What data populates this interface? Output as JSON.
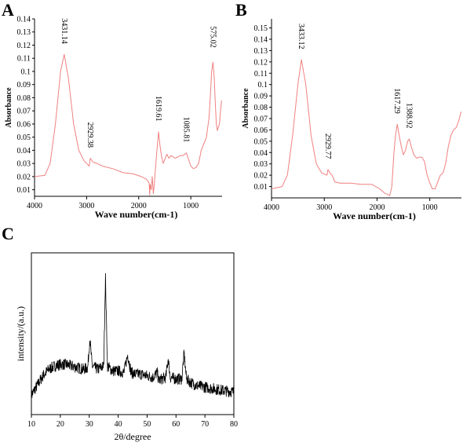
{
  "panels": {
    "a": {
      "letter": "A"
    },
    "b": {
      "letter": "B"
    },
    "c": {
      "letter": "C"
    }
  },
  "colors": {
    "ftir_line": "#f08080",
    "xrd_line": "#000000",
    "axis": "#000000"
  },
  "chart_data": [
    {
      "id": "A",
      "type": "line",
      "xlabel": "Wave number(cm-1)",
      "ylabel": "Absorbance",
      "xlim": [
        4000,
        400
      ],
      "ylim": [
        0.005,
        0.14
      ],
      "x_reversed": true,
      "x_ticks": [
        4000,
        3000,
        2000,
        1000
      ],
      "y_ticks": [
        0.01,
        0.02,
        0.03,
        0.04,
        0.05,
        0.06,
        0.07,
        0.08,
        0.09,
        0.1,
        0.11,
        0.12,
        0.13,
        0.14
      ],
      "x_tick_labels": [
        "4000",
        "3000",
        "2000",
        "1000"
      ],
      "y_tick_labels": [
        "0.01",
        "0.02",
        "0.03",
        "0.04",
        "0.05",
        "0.06",
        "0.07",
        "0.08",
        "0.09",
        "0.1",
        "0.11",
        "0.12",
        "0.13",
        "0.14"
      ],
      "series": [
        {
          "x": [
            4000,
            3800,
            3700,
            3600,
            3500,
            3431,
            3350,
            3250,
            3150,
            3050,
            2950,
            2929,
            2880,
            2800,
            2700,
            2500,
            2300,
            2100,
            1950,
            1850,
            1800,
            1790,
            1780,
            1760,
            1740,
            1720,
            1700,
            1680,
            1660,
            1640,
            1619,
            1590,
            1560,
            1530,
            1500,
            1460,
            1420,
            1380,
            1340,
            1300,
            1250,
            1200,
            1150,
            1085,
            1050,
            1000,
            950,
            900,
            850,
            800,
            750,
            700,
            650,
            620,
            600,
            575,
            550,
            530,
            510,
            490,
            470,
            450,
            430,
            410
          ],
          "y": [
            0.02,
            0.021,
            0.03,
            0.06,
            0.1,
            0.113,
            0.095,
            0.06,
            0.04,
            0.032,
            0.028,
            0.034,
            0.031,
            0.03,
            0.028,
            0.026,
            0.023,
            0.022,
            0.02,
            0.018,
            0.015,
            0.006,
            0.014,
            0.01,
            0.02,
            0.007,
            0.015,
            0.025,
            0.035,
            0.045,
            0.054,
            0.043,
            0.035,
            0.03,
            0.033,
            0.037,
            0.034,
            0.036,
            0.035,
            0.034,
            0.035,
            0.036,
            0.036,
            0.038,
            0.034,
            0.028,
            0.026,
            0.027,
            0.03,
            0.04,
            0.045,
            0.05,
            0.065,
            0.085,
            0.1,
            0.107,
            0.095,
            0.075,
            0.06,
            0.055,
            0.058,
            0.06,
            0.07,
            0.078
          ]
        }
      ],
      "annotations": [
        "3431.14",
        "2929.38",
        "1619.61",
        "1085.81",
        "575.02"
      ],
      "annotation_x": [
        3431,
        2929,
        1619,
        1085,
        575
      ],
      "annotation_y": [
        0.113,
        0.034,
        0.054,
        0.038,
        0.107
      ]
    },
    {
      "id": "B",
      "type": "line",
      "xlabel": "Wave number(cm-1)",
      "ylabel": "Absorbance",
      "xlim": [
        4000,
        400
      ],
      "ylim": [
        0.0,
        0.158
      ],
      "x_reversed": true,
      "x_ticks": [
        4000,
        3000,
        2000,
        1000
      ],
      "y_ticks": [
        0.01,
        0.02,
        0.03,
        0.04,
        0.05,
        0.06,
        0.07,
        0.08,
        0.09,
        0.1,
        0.11,
        0.12,
        0.13,
        0.14,
        0.15
      ],
      "x_tick_labels": [
        "4000",
        "3000",
        "2000",
        "1000"
      ],
      "y_tick_labels": [
        "0.01",
        "0.02",
        "0.03",
        "0.04",
        "0.05",
        "0.06",
        "0.07",
        "0.08",
        "0.09",
        "0.1",
        "0.11",
        "0.12",
        "0.13",
        "0.14",
        "0.15"
      ],
      "series": [
        {
          "x": [
            4000,
            3800,
            3700,
            3600,
            3500,
            3433,
            3350,
            3250,
            3150,
            3050,
            2950,
            2929,
            2880,
            2850,
            2800,
            2700,
            2500,
            2300,
            2100,
            1950,
            1850,
            1800,
            1760,
            1720,
            1680,
            1650,
            1617,
            1580,
            1540,
            1500,
            1460,
            1420,
            1389,
            1350,
            1300,
            1250,
            1200,
            1150,
            1100,
            1050,
            1000,
            950,
            900,
            850,
            800,
            750,
            700,
            650,
            600,
            550,
            500,
            450,
            420,
            400
          ],
          "y": [
            0.008,
            0.01,
            0.02,
            0.055,
            0.1,
            0.122,
            0.1,
            0.055,
            0.03,
            0.022,
            0.02,
            0.025,
            0.021,
            0.02,
            0.014,
            0.013,
            0.013,
            0.012,
            0.012,
            0.008,
            0.004,
            0.003,
            0.002,
            0.01,
            0.04,
            0.055,
            0.065,
            0.055,
            0.045,
            0.038,
            0.042,
            0.05,
            0.052,
            0.045,
            0.038,
            0.035,
            0.036,
            0.036,
            0.032,
            0.02,
            0.013,
            0.008,
            0.008,
            0.014,
            0.02,
            0.022,
            0.03,
            0.045,
            0.055,
            0.06,
            0.062,
            0.068,
            0.074,
            0.076
          ]
        }
      ],
      "annotations": [
        "3433.12",
        "2929.77",
        "1617.29",
        "1388.92"
      ],
      "annotation_x": [
        3433,
        2929,
        1617,
        1389
      ],
      "annotation_y": [
        0.122,
        0.025,
        0.065,
        0.052
      ]
    },
    {
      "id": "C",
      "type": "line",
      "xlabel": "2θ/degree",
      "ylabel": "intensity/(a.u.)",
      "xlim": [
        10,
        80
      ],
      "ylim": [
        0,
        100
      ],
      "x_ticks": [
        10,
        20,
        30,
        40,
        50,
        60,
        70,
        80
      ],
      "x_tick_labels": [
        "10",
        "20",
        "30",
        "40",
        "50",
        "60",
        "70",
        "80"
      ],
      "series": [
        {
          "x": [
            10,
            12,
            14,
            16,
            18,
            20,
            22,
            24,
            26,
            28,
            29.5,
            30.2,
            31,
            33,
            35,
            35.6,
            36.3,
            38,
            40,
            42,
            43.3,
            44.5,
            46,
            48,
            50,
            52,
            53.5,
            54,
            55,
            56.5,
            57.3,
            58,
            60,
            62,
            62.8,
            63.6,
            65,
            67,
            70,
            73,
            76,
            80
          ],
          "y": [
            12,
            18,
            24,
            28,
            30,
            31,
            31,
            30,
            29,
            28,
            29,
            47,
            30,
            28,
            30,
            86,
            30,
            27,
            27,
            26,
            37,
            26,
            25,
            25,
            24,
            23,
            26,
            21,
            22,
            23,
            35,
            23,
            22,
            22,
            38,
            22,
            20,
            18,
            17,
            16,
            15,
            14
          ]
        }
      ]
    }
  ]
}
